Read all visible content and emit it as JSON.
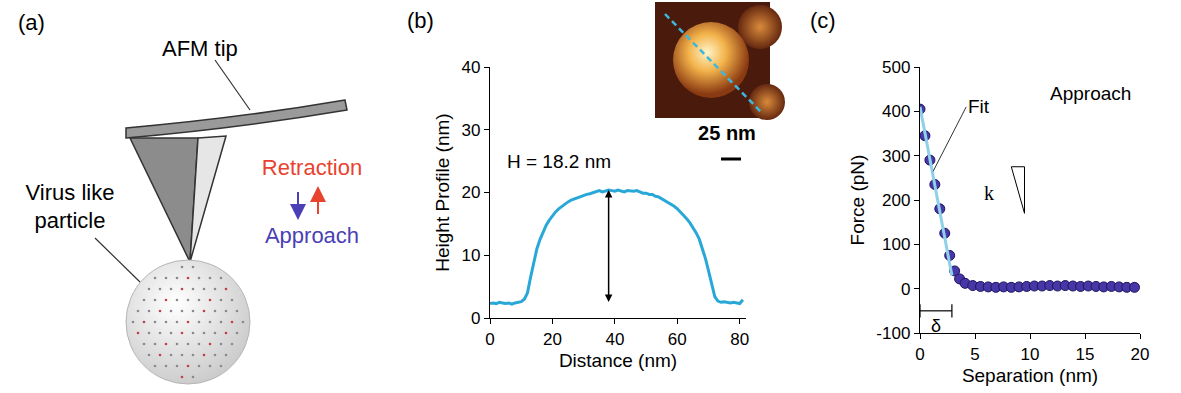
{
  "diagram": {
    "label": "(a)",
    "tip": "AFM tip",
    "particle": [
      "Virus like",
      "particle"
    ],
    "retraction": {
      "text": "Retraction",
      "color": "#e8432f"
    },
    "approach": {
      "text": "Approach",
      "color": "#4a3fb5"
    }
  },
  "chart_data": [
    {
      "label": "(b)",
      "type": "line",
      "color": "#29a8d8",
      "grid": false,
      "x": [
        0,
        1,
        2,
        3,
        4,
        5,
        6,
        7,
        8,
        9,
        10,
        11,
        12,
        13,
        14,
        15,
        16,
        17,
        18,
        19,
        20,
        21,
        22,
        23,
        24,
        25,
        26,
        27,
        28,
        29,
        30,
        31,
        32,
        33,
        34,
        35,
        36,
        37,
        38,
        39,
        40,
        41,
        42,
        43,
        44,
        45,
        46,
        47,
        48,
        49,
        50,
        51,
        52,
        53,
        54,
        55,
        56,
        57,
        58,
        59,
        60,
        61,
        62,
        63,
        64,
        65,
        66,
        67,
        68,
        69,
        70,
        71,
        72,
        73,
        74,
        75,
        76,
        77,
        78,
        79,
        80,
        81
      ],
      "values": [
        2.3,
        2.4,
        2.3,
        2.5,
        2.4,
        2.3,
        2.4,
        2.2,
        2.4,
        2.5,
        2.6,
        3.0,
        4.0,
        6.5,
        9.0,
        11.0,
        12.5,
        13.8,
        14.8,
        15.6,
        16.3,
        16.9,
        17.4,
        17.8,
        18.2,
        18.5,
        18.8,
        19.0,
        19.2,
        19.4,
        19.6,
        19.7,
        19.8,
        20.0,
        20.2,
        20.3,
        20.1,
        20.3,
        20.4,
        20.3,
        20.2,
        20.4,
        20.3,
        20.1,
        20.3,
        20.2,
        20.2,
        20.3,
        20.1,
        19.9,
        19.9,
        19.7,
        19.7,
        19.4,
        19.3,
        19.0,
        18.8,
        18.5,
        18.2,
        17.8,
        17.4,
        16.9,
        16.4,
        15.8,
        15.2,
        14.5,
        13.6,
        12.6,
        11.2,
        9.5,
        7.5,
        5.2,
        3.4,
        2.7,
        2.5,
        2.6,
        2.5,
        2.4,
        2.5,
        2.4,
        2.3,
        2.9
      ],
      "xlabel": "Distance (nm)",
      "ylabel": "Height Profile (nm)",
      "xlim": [
        0,
        82
      ],
      "xticks": [
        0,
        20,
        40,
        60,
        80
      ],
      "ylim": [
        0,
        40
      ],
      "yticks": [
        0,
        10,
        20,
        30,
        40
      ],
      "annotations": [
        "H = 18.2 nm"
      ],
      "scale_bar_label": "25 nm"
    },
    {
      "label": "(c)",
      "type": "scatter",
      "grid": false,
      "xlabel": "Separation (nm)",
      "ylabel": "Force (pN)",
      "xlim": [
        0,
        20
      ],
      "xticks": [
        0,
        5,
        10,
        15,
        20
      ],
      "ylim": [
        -100,
        500
      ],
      "yticks": [
        -100,
        0,
        100,
        200,
        300,
        400,
        500
      ],
      "series": [
        {
          "type": "scatter",
          "marker": "circle",
          "color": "#4636a6",
          "x": [
            0,
            0.45,
            0.9,
            1.35,
            1.8,
            2.25,
            2.7,
            3.15,
            3.6,
            4.1,
            4.8,
            5.5,
            6.2,
            6.9,
            7.6,
            8.3,
            9.0,
            9.7,
            10.4,
            11.1,
            11.8,
            12.5,
            13.2,
            13.9,
            14.6,
            15.3,
            16.0,
            16.7,
            17.4,
            18.1,
            18.8,
            19.5
          ],
          "values": [
            405,
            345,
            290,
            235,
            180,
            125,
            75,
            40,
            22,
            12,
            7,
            5,
            4,
            3,
            4,
            3,
            4,
            5,
            6,
            6,
            7,
            6,
            7,
            6,
            5,
            6,
            5,
            4,
            5,
            4,
            3,
            3
          ]
        },
        {
          "type": "line",
          "color": "#8fd0ea",
          "x": [
            0,
            2.9
          ],
          "values": [
            410,
            30
          ]
        }
      ],
      "annotations": [
        "Fit",
        "Approach",
        "k",
        "δ"
      ]
    }
  ]
}
